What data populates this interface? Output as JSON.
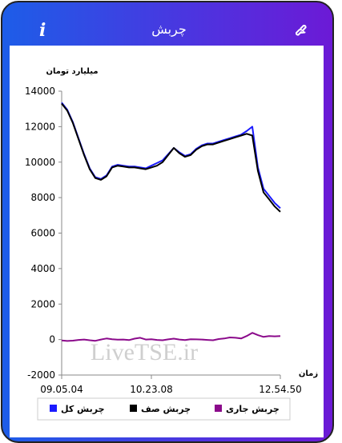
{
  "header": {
    "title": "چربش",
    "info_icon": "i"
  },
  "chart_data": {
    "type": "line",
    "y_label": "میلیارد تومان",
    "x_label": "زمان",
    "watermark": "LiveTSE.ir",
    "categories": [
      "09.05.04",
      null,
      null,
      null,
      null,
      null,
      null,
      null,
      null,
      null,
      null,
      null,
      null,
      null,
      null,
      null,
      "10.23.08",
      null,
      null,
      null,
      null,
      null,
      null,
      null,
      null,
      null,
      null,
      null,
      null,
      null,
      null,
      null,
      null,
      null,
      null,
      null,
      null,
      null,
      null,
      "12.54.50"
    ],
    "ylim": [
      -2000,
      14000
    ],
    "yticks": [
      -2000,
      0,
      2000,
      4000,
      6000,
      8000,
      10000,
      12000,
      14000
    ],
    "grid": false,
    "series": [
      {
        "name": "چربش کل",
        "color": "#1a1aff",
        "values": [
          13350,
          12950,
          12250,
          11350,
          10450,
          9650,
          9150,
          9050,
          9250,
          9750,
          9850,
          9800,
          9750,
          9750,
          9700,
          9650,
          9800,
          9950,
          10100,
          10450,
          10800,
          10550,
          10350,
          10450,
          10750,
          10950,
          11050,
          11050,
          11150,
          11250,
          11350,
          11450,
          11550,
          11750,
          12000,
          9700,
          8500,
          8100,
          7700,
          7400
        ]
      },
      {
        "name": "چربش صف",
        "color": "#000000",
        "values": [
          13300,
          12900,
          12200,
          11300,
          10400,
          9600,
          9100,
          9000,
          9200,
          9700,
          9800,
          9750,
          9700,
          9700,
          9650,
          9600,
          9700,
          9800,
          10000,
          10400,
          10800,
          10500,
          10300,
          10400,
          10700,
          10900,
          11000,
          11000,
          11100,
          11200,
          11300,
          11400,
          11500,
          11600,
          11500,
          9500,
          8300,
          7900,
          7500,
          7200
        ]
      },
      {
        "name": "چربش جاری",
        "color": "#8b0a8b",
        "values": [
          -50,
          -80,
          -60,
          -20,
          0,
          -40,
          -70,
          0,
          60,
          20,
          -10,
          0,
          -30,
          50,
          100,
          0,
          20,
          -20,
          -40,
          10,
          50,
          0,
          -30,
          20,
          10,
          0,
          -20,
          -40,
          30,
          60,
          120,
          100,
          60,
          200,
          380,
          250,
          150,
          200,
          180,
          200
        ]
      }
    ]
  }
}
